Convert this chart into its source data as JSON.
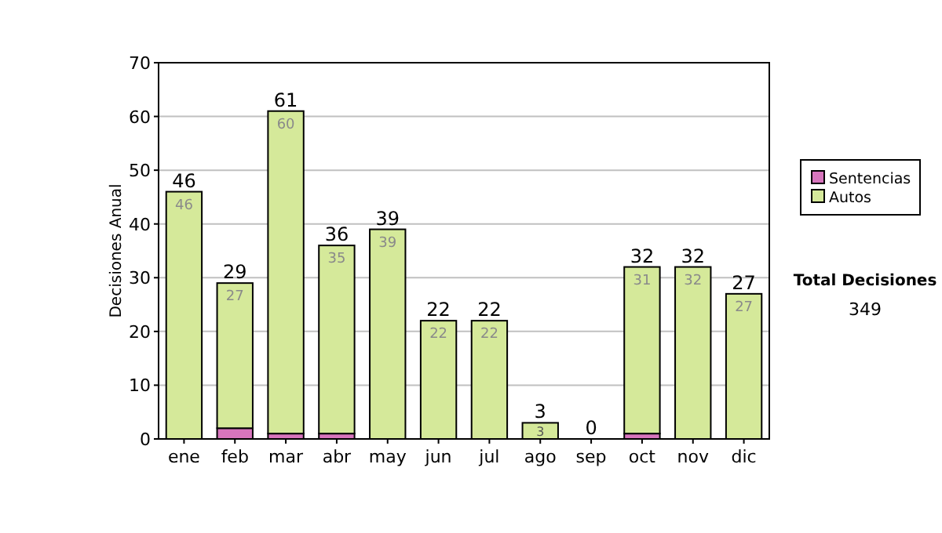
{
  "chart_data": {
    "type": "bar",
    "stacked": true,
    "ylabel": "Decisiones Anual",
    "categories": [
      "ene",
      "feb",
      "mar",
      "abr",
      "may",
      "jun",
      "jul",
      "ago",
      "sep",
      "oct",
      "nov",
      "dic"
    ],
    "series": [
      {
        "name": "Sentencias",
        "color": "#d775bd",
        "values": [
          0,
          2,
          1,
          1,
          0,
          0,
          0,
          0,
          0,
          1,
          0,
          0
        ]
      },
      {
        "name": "Autos",
        "color": "#d5e99a",
        "values": [
          46,
          27,
          60,
          35,
          39,
          22,
          22,
          3,
          0,
          31,
          32,
          27
        ],
        "value_labels": [
          "46",
          "27",
          "60",
          "35",
          "39",
          "22",
          "22",
          "3",
          null,
          "31",
          "32",
          "27"
        ]
      }
    ],
    "totals": [
      "46",
      "29",
      "61",
      "36",
      "39",
      "22",
      "22",
      "3",
      "0",
      "32",
      "32",
      "27"
    ],
    "ylim": [
      0,
      70
    ],
    "yticks": [
      0,
      10,
      20,
      30,
      40,
      50,
      60,
      70
    ],
    "grid": "y",
    "legend": "right",
    "annotations": [
      "Total Decisiones",
      "349"
    ]
  }
}
